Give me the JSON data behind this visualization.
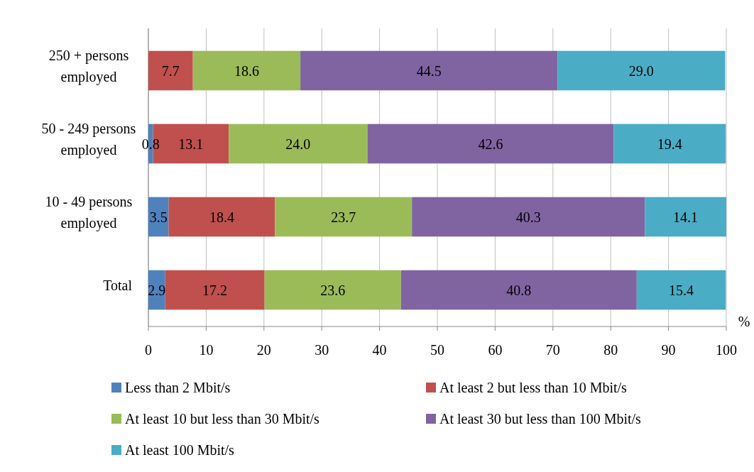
{
  "chart_data": {
    "type": "bar",
    "orientation": "horizontal",
    "stacked": true,
    "xlabel": "%",
    "categories": [
      "250 + persons employed",
      "50 - 249 persons employed",
      "10 - 49 persons employed",
      "Total"
    ],
    "xlim": [
      0,
      100
    ],
    "xticks": [
      0,
      10,
      20,
      30,
      40,
      50,
      60,
      70,
      80,
      90,
      100
    ],
    "grid": "x",
    "legend": "bottom",
    "series": [
      {
        "name": "Less than 2 Mbit/s",
        "color": "#4f81bd",
        "values": [
          null,
          0.8,
          3.5,
          2.9
        ],
        "value_labels": [
          null,
          "0.8",
          "3.5",
          "2.9"
        ]
      },
      {
        "name": "At least 2 but less than 10 Mbit/s",
        "color": "#c0504d",
        "values": [
          7.7,
          13.1,
          18.4,
          17.2
        ],
        "value_labels": [
          "7.7",
          "13.1",
          "18.4",
          "17.2"
        ]
      },
      {
        "name": "At least 10 but less than 30 Mbit/s",
        "color": "#9bbb59",
        "values": [
          18.6,
          24.0,
          23.7,
          23.6
        ],
        "value_labels": [
          "18.6",
          "24.0",
          "23.7",
          "23.6"
        ]
      },
      {
        "name": "At least 30 but less than 100 Mbit/s",
        "color": "#8064a2",
        "values": [
          44.5,
          42.6,
          40.3,
          40.8
        ],
        "value_labels": [
          "44.5",
          "42.6",
          "40.3",
          "40.8"
        ]
      },
      {
        "name": "At least 100 Mbit/s",
        "color": "#4bacc6",
        "values": [
          29.0,
          19.4,
          14.1,
          15.4
        ],
        "value_labels": [
          "29.0",
          "19.4",
          "14.1",
          "15.4"
        ]
      }
    ]
  }
}
